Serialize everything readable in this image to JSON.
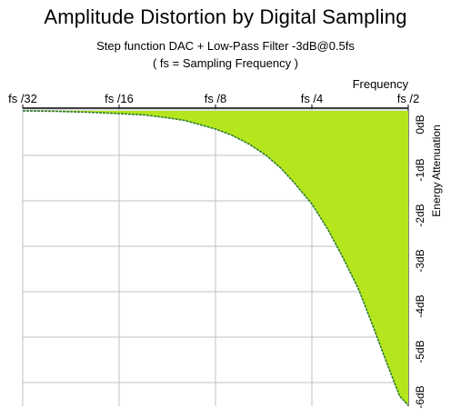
{
  "title": "Amplitude Distortion by Digital Sampling",
  "subtitle_line1": "Step function DAC + Low-Pass Filter -3dB@0.5fs",
  "subtitle_line2": "( fs = Sampling Frequency )",
  "chart_data": {
    "type": "area",
    "title": "Amplitude Distortion by Digital Sampling",
    "subtitle": "Step function DAC + Low-Pass Filter -3dB@0.5fs ( fs = Sampling Frequency )",
    "xlabel": "Frequency",
    "ylabel": "Energy Attenuation",
    "x_scale": "log2",
    "x_ticks": [
      {
        "value": 0.03125,
        "label": "fs /32"
      },
      {
        "value": 0.0625,
        "label": "fs /16"
      },
      {
        "value": 0.125,
        "label": "fs /8"
      },
      {
        "value": 0.25,
        "label": "fs /4"
      },
      {
        "value": 0.5,
        "label": "fs /2"
      }
    ],
    "y_ticks": [
      {
        "value": 0,
        "label": "0dB"
      },
      {
        "value": -1,
        "label": "-1dB"
      },
      {
        "value": -2,
        "label": "-2dB"
      },
      {
        "value": -3,
        "label": "-3dB"
      },
      {
        "value": -4,
        "label": "-4dB"
      },
      {
        "value": -5,
        "label": "-5dB"
      },
      {
        "value": -6,
        "label": "-6dB"
      }
    ],
    "xlim": [
      0.03125,
      0.5
    ],
    "ylim": [
      -6.5,
      0
    ],
    "grid": true,
    "x_axis_position": "top",
    "y_axis_position": "right",
    "fill_color": "#b5e61d",
    "edge_color": "#2e7d2e",
    "grid_color": "#c0c0c0",
    "series": [
      {
        "x": [
          0.03125,
          0.04,
          0.05,
          0.0625,
          0.075,
          0.09,
          0.1,
          0.11,
          0.125,
          0.14,
          0.16,
          0.18,
          0.2,
          0.22,
          0.25,
          0.28,
          0.31,
          0.35,
          0.39,
          0.43,
          0.47,
          0.5
        ],
        "y": [
          -0.02,
          -0.03,
          -0.05,
          -0.08,
          -0.11,
          -0.18,
          -0.23,
          -0.31,
          -0.42,
          -0.55,
          -0.76,
          -1.0,
          -1.28,
          -1.6,
          -2.07,
          -2.62,
          -3.2,
          -3.95,
          -4.8,
          -5.6,
          -6.3,
          -6.5
        ]
      }
    ]
  }
}
